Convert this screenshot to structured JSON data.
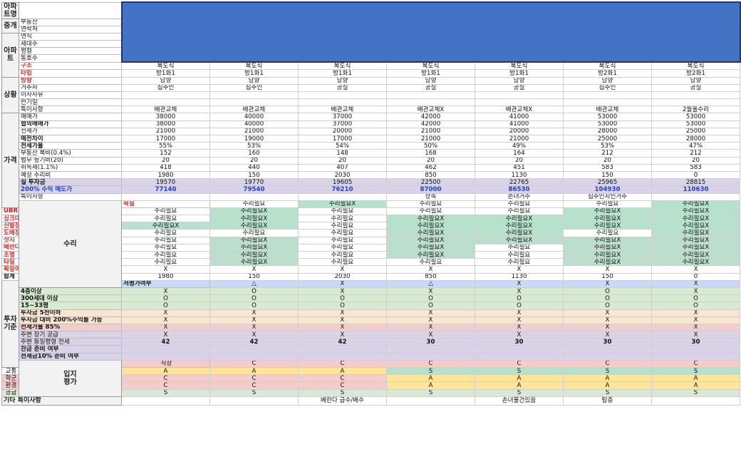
{
  "columns": 7,
  "rows": [
    {
      "grp": "아파트명",
      "grpSpan": 1,
      "label": "",
      "band": true
    },
    {
      "grp": "중개",
      "grpSpan": 2,
      "label": "부동산",
      "band": true
    },
    {
      "label": "연락처",
      "band": true
    },
    {
      "grp": "아파트",
      "grpSpan": 6,
      "label": "연식",
      "band": true
    },
    {
      "label": "세대수",
      "band": true
    },
    {
      "label": "평형",
      "band": true
    },
    {
      "label": "동호수",
      "band": true
    },
    {
      "label": "구조",
      "cls": "red",
      "vals": [
        "복도식",
        "복도식",
        "복도식",
        "복도식",
        "복도식",
        "복도식",
        "복도식"
      ]
    },
    {
      "label": "타입",
      "cls": "red",
      "vals": [
        "방1화1",
        "방1화1",
        "방1화1",
        "방1화1",
        "방1화1",
        "방2화1",
        "방2화1"
      ]
    },
    {
      "grp": "상황",
      "grpSpan": 5,
      "label": "방향",
      "cls": "red",
      "vals": [
        "남향",
        "남향",
        "남향",
        "남향",
        "남향",
        "남향",
        "남향"
      ]
    },
    {
      "label": "거주자",
      "vals": [
        "집주인",
        "집주인",
        "공실",
        "공실",
        "공실",
        "집주인",
        "공실"
      ]
    },
    {
      "label": "이사사유",
      "vals": [
        "",
        "",
        "",
        "",
        "",
        "",
        ""
      ]
    },
    {
      "label": "만기일",
      "vals": [
        "",
        "",
        "",
        "",
        "",
        "",
        ""
      ]
    },
    {
      "label": "특이사항",
      "vals": [
        "배관교체",
        "배관교체",
        "배관교체",
        "배관교체X",
        "배관교체X",
        "배관교체",
        "2월올수리"
      ]
    },
    {
      "grp": "가격",
      "grpSpan": 13,
      "label": "매매가",
      "vals": [
        "38000",
        "40000",
        "37000",
        "42000",
        "41000",
        "53000",
        "53000"
      ]
    },
    {
      "label": "협의매매가",
      "cls": "bold",
      "vals": [
        "38000",
        "40000",
        "37000",
        "42000",
        "41000",
        "53000",
        "53000"
      ]
    },
    {
      "label": "전세가",
      "vals": [
        "21000",
        "21000",
        "20000",
        "21000",
        "20000",
        "28000",
        "25000"
      ]
    },
    {
      "label": "매전차이",
      "cls": "bold",
      "vals": [
        "17000",
        "19000",
        "17000",
        "21000",
        "21000",
        "25000",
        "28000"
      ]
    },
    {
      "label": "전세가율",
      "cls": "bold",
      "vals": [
        "55%",
        "53%",
        "54%",
        "50%",
        "49%",
        "53%",
        "47%"
      ]
    },
    {
      "label": "부동산 복비(0.4%)",
      "vals": [
        "152",
        "160",
        "148",
        "168",
        "164",
        "212",
        "212"
      ]
    },
    {
      "label": "법무 등기비(20)",
      "vals": [
        "20",
        "20",
        "20",
        "20",
        "20",
        "20",
        "20"
      ]
    },
    {
      "label": "취득세(1.1%)",
      "vals": [
        "418",
        "440",
        "407",
        "462",
        "451",
        "583",
        "583"
      ]
    },
    {
      "label": "예상 수리비",
      "vals": [
        "1980",
        "150",
        "2030",
        "850",
        "1130",
        "150",
        "0"
      ]
    },
    {
      "label": "실 투자금",
      "cls": "bold",
      "row": "hl-lav",
      "vals": [
        "19570",
        "19770",
        "19605",
        "22500",
        "22765",
        "25965",
        "28815"
      ]
    },
    {
      "label": "200% 수익 매도가",
      "cls": "blue",
      "row": "hl-lav",
      "valcls": "blue",
      "vals": [
        "77140",
        "79540",
        "76210",
        "87000",
        "86530",
        "104930",
        "110630"
      ]
    },
    {
      "label": "특이사항",
      "vals": [
        "",
        "",
        "",
        "상속",
        "손녀거주",
        "집주인지인거주",
        ""
      ]
    },
    {
      "grp": "수리",
      "grpSpan": 12,
      "label": "욕실",
      "cls": "red",
      "vals": [
        "수리필요",
        "수리필요X",
        "수리필요",
        "수리필요",
        "수리필요",
        "수리필요X",
        "수리필요X"
      ],
      "cc": [
        "",
        "c-green",
        "",
        "",
        "",
        "c-green",
        "c-green"
      ]
    },
    {
      "label": "UBR욕실",
      "cls": "red",
      "vals": [
        "수리필요",
        "수리필요X",
        "수리필요",
        "수리필요",
        "수리필요",
        "수리필요X",
        "수리필요X"
      ],
      "cc": [
        "",
        "c-green",
        "",
        "",
        "",
        "c-green",
        "c-green"
      ]
    },
    {
      "label": "싱크대",
      "cls": "red",
      "vals": [
        "수리필요",
        "수리필요X",
        "수리필요",
        "수리필요X",
        "수리필요X",
        "수리필요X",
        "수리필요X"
      ],
      "cc": [
        "",
        "c-green",
        "",
        "c-green",
        "c-green",
        "c-green",
        "c-green"
      ]
    },
    {
      "label": "신발장",
      "cls": "red",
      "vals": [
        "수리필요X",
        "수리필요X",
        "수리필요",
        "수리필요X",
        "수리필요X",
        "수리필요X",
        "수리필요X"
      ],
      "cc": [
        "c-green",
        "c-green",
        "",
        "c-green",
        "c-green",
        "c-green",
        "c-green"
      ]
    },
    {
      "label": "도배장판",
      "cls": "red",
      "vals": [
        "수리필요",
        "수리필요",
        "수리필요",
        "수리필요X",
        "수리필요X",
        "수리필요",
        "수리필요X"
      ],
      "cc": [
        "",
        "",
        "",
        "c-green",
        "c-green",
        "",
        "c-green"
      ]
    },
    {
      "label": "샷시",
      "cls": "red",
      "vals": [
        "수리필요",
        "수리필요X",
        "수리필요",
        "수리필요X",
        "수리필요X",
        "수리필요X",
        "수리필요X"
      ],
      "cc": [
        "",
        "c-green",
        "",
        "c-green",
        "c-green",
        "c-green",
        "c-green"
      ]
    },
    {
      "label": "베란다수납장",
      "cls": "red",
      "vals": [
        "수리필요",
        "수리필요X",
        "수리필요",
        "수리필요X",
        "수리필요",
        "수리필요X",
        "수리필요X"
      ],
      "cc": [
        "",
        "c-green",
        "",
        "c-green",
        "",
        "c-green",
        "c-green"
      ]
    },
    {
      "label": "조명",
      "cls": "red",
      "vals": [
        "수리필요",
        "수리필요X",
        "수리필요",
        "수리필요X",
        "수리필요",
        "수리필요X",
        "수리필요X"
      ],
      "cc": [
        "",
        "c-green",
        "",
        "c-green",
        "",
        "c-green",
        "c-green"
      ]
    },
    {
      "label": "타일",
      "cls": "red",
      "vals": [
        "수리필요",
        "수리필요X",
        "수리필요",
        "수리필요",
        "수리필요",
        "수리필요X",
        "수리필요X"
      ],
      "cc": [
        "",
        "c-green",
        "",
        "",
        "",
        "c-green",
        "c-green"
      ]
    },
    {
      "label": "확장여부(-)",
      "cls": "red",
      "vals": [
        "X",
        "X",
        "X",
        "X",
        "X",
        "X",
        "X"
      ]
    },
    {
      "label": "합계",
      "cls": "bold",
      "vals": [
        "1980",
        "150",
        "2030",
        "850",
        "1130",
        "150",
        "0"
      ]
    },
    {
      "grp": "투자\n기준",
      "grpSpan": 12,
      "label": "저평가여부",
      "cls": "bold",
      "row": "hl-blue",
      "vals": [
        "△",
        "X",
        "△",
        "X",
        "X",
        "X",
        "X"
      ]
    },
    {
      "label": "4층이상",
      "cls": "bold",
      "row": "hl-green",
      "vals": [
        "X",
        "O",
        "X",
        "X",
        "X",
        "O",
        "X"
      ]
    },
    {
      "label": "300세대 이상",
      "cls": "bold",
      "row": "hl-green",
      "vals": [
        "O",
        "O",
        "O",
        "O",
        "O",
        "O",
        "O"
      ]
    },
    {
      "label": "15~33평",
      "cls": "bold",
      "row": "hl-green",
      "vals": [
        "O",
        "O",
        "O",
        "O",
        "O",
        "O",
        "O"
      ]
    },
    {
      "label": "투자금 5천이하",
      "cls": "bold",
      "row": "hl-orange",
      "vals": [
        "X",
        "X",
        "X",
        "X",
        "X",
        "X",
        "X"
      ]
    },
    {
      "label": "투자금 대비 200%수익률 가능",
      "cls": "bold",
      "row": "hl-orange",
      "vals": [
        "X",
        "X",
        "X",
        "X",
        "X",
        "X",
        "X"
      ]
    },
    {
      "label": "전세가율 85%",
      "cls": "bold",
      "row": "hl-pink",
      "vals": [
        "X",
        "X",
        "X",
        "X",
        "X",
        "X",
        "X"
      ]
    },
    {
      "label": "주변 장기 공급",
      "row": "hl-purple",
      "vals": [
        "X",
        "X",
        "X",
        "X",
        "X",
        "X",
        "X"
      ]
    },
    {
      "label": "주변 동일평형 전세",
      "row": "hl-purple",
      "vals": [
        "42",
        "42",
        "42",
        "30",
        "30",
        "30",
        "30"
      ],
      "valcls": "bold"
    },
    {
      "label": "잔금 준비 여부",
      "cls": "bold",
      "row": "hl-purple",
      "vals": [
        "",
        "",
        "",
        "",
        "",
        "",
        ""
      ]
    },
    {
      "label": "전세금10% 준비 여부",
      "cls": "bold",
      "row": "hl-purple",
      "vals": [
        "",
        "",
        "",
        "",
        "",
        "",
        ""
      ]
    },
    {
      "grp": "입지\n평가",
      "grpSpan": 5,
      "label": "직장",
      "center": true,
      "row": "hl-pink",
      "vals": [
        "C",
        "C",
        "C",
        "C",
        "C",
        "C",
        "C"
      ]
    },
    {
      "label": "교통",
      "center": true,
      "vals": [
        "A",
        "A",
        "A",
        "S",
        "S",
        "S",
        "S"
      ],
      "cc": [
        "c-yellow",
        "c-yellow",
        "c-yellow",
        "c-green",
        "c-green",
        "c-green",
        "c-green"
      ]
    },
    {
      "label": "학군",
      "center": true,
      "row": "hl-pink",
      "vals": [
        "C",
        "C",
        "C",
        "A",
        "A",
        "A",
        "A"
      ],
      "cc": [
        "",
        "",
        "",
        "c-yellow",
        "c-yellow",
        "c-yellow",
        "c-yellow"
      ]
    },
    {
      "label": "환경",
      "center": true,
      "row": "hl-pink",
      "vals": [
        "C",
        "C",
        "C",
        "A",
        "A",
        "A",
        "A"
      ],
      "cc": [
        "",
        "",
        "",
        "c-yellow",
        "c-yellow",
        "c-yellow",
        "c-yellow"
      ]
    },
    {
      "label": "공급",
      "center": true,
      "row": "hl-green",
      "vals": [
        "S",
        "S",
        "S",
        "S",
        "S",
        "S",
        "S"
      ]
    },
    {
      "grp": "기타 특이사항",
      "grpSpan": 1,
      "grpWide": true,
      "vals": [
        "",
        "",
        "베란다 급수/배수",
        "",
        "손녀물건있음",
        "탑층",
        ""
      ]
    }
  ]
}
